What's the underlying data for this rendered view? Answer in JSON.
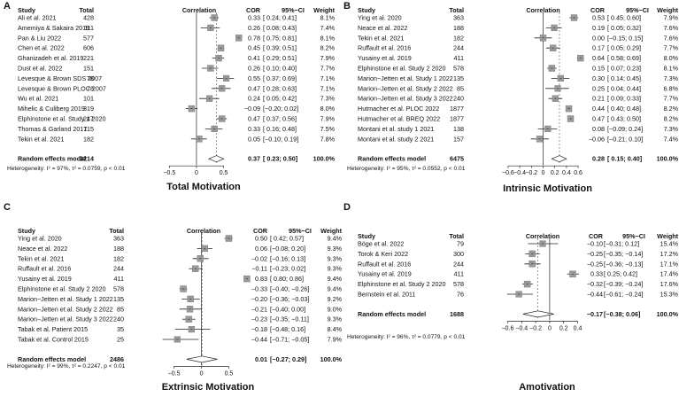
{
  "chart_data": [
    {
      "type": "forest",
      "panel_letter": "A",
      "title": "Total Motivation",
      "headers": {
        "study": "Study",
        "total": "Total",
        "corr": "Correlation",
        "cor": "COR",
        "ci": "95%−CI",
        "weight": "Weight"
      },
      "studies": [
        {
          "name": "Ali et al. 2021",
          "total": "428",
          "cor": 0.33,
          "lo": 0.24,
          "hi": 0.41,
          "cor_text": "0.33",
          "ci_text": "[ 0.24; 0.41]",
          "weight": "8.1%"
        },
        {
          "name": "Amemiya & Sakaira 2019",
          "total": "111",
          "cor": 0.26,
          "lo": 0.08,
          "hi": 0.43,
          "cor_text": "0.26",
          "ci_text": "[ 0.08; 0.43]",
          "weight": "7.4%"
        },
        {
          "name": "Pan & Liu 2022",
          "total": "577",
          "cor": 0.78,
          "lo": 0.75,
          "hi": 0.81,
          "cor_text": "0.78",
          "ci_text": "[ 0.75; 0.81]",
          "weight": "8.1%"
        },
        {
          "name": "Chen et al. 2022",
          "total": "606",
          "cor": 0.45,
          "lo": 0.39,
          "hi": 0.51,
          "cor_text": "0.45",
          "ci_text": "[ 0.39; 0.51]",
          "weight": "8.2%"
        },
        {
          "name": "Ghanizadeh et al. 2019",
          "total": "221",
          "cor": 0.41,
          "lo": 0.29,
          "hi": 0.51,
          "cor_text": "0.41",
          "ci_text": "[ 0.29; 0.51]",
          "weight": "7.9%"
        },
        {
          "name": "Dust et al. 2022",
          "total": "151",
          "cor": 0.26,
          "lo": 0.1,
          "hi": 0.4,
          "cor_text": "0.26",
          "ci_text": "[ 0.10; 0.40]",
          "weight": "7.7%"
        },
        {
          "name": "Levesque & Brown SDS 2007",
          "total": "78",
          "cor": 0.55,
          "lo": 0.37,
          "hi": 0.69,
          "cor_text": "0.55",
          "ci_text": "[ 0.37; 0.69]",
          "weight": "7.1%"
        },
        {
          "name": "Levesque & Brown PLOC 2007",
          "total": "78",
          "cor": 0.47,
          "lo": 0.28,
          "hi": 0.63,
          "cor_text": "0.47",
          "ci_text": "[ 0.28; 0.63]",
          "weight": "7.1%"
        },
        {
          "name": "Wu et al. 2021",
          "total": "101",
          "cor": 0.24,
          "lo": 0.05,
          "hi": 0.42,
          "cor_text": "0.24",
          "ci_text": "[ 0.05; 0.42]",
          "weight": "7.3%"
        },
        {
          "name": "Mihelic & Culiberg 2019",
          "total": "319",
          "cor": -0.09,
          "lo": -0.2,
          "hi": 0.02,
          "cor_text": "−0.09",
          "ci_text": "[−0.20; 0.02]",
          "weight": "8.0%"
        },
        {
          "name": "Elphinstone et al. Study 1 2020",
          "total": "247",
          "cor": 0.47,
          "lo": 0.37,
          "hi": 0.56,
          "cor_text": "0.47",
          "ci_text": "[ 0.37; 0.56]",
          "weight": "7.9%"
        },
        {
          "name": "Thomas & Garland 2017",
          "total": "115",
          "cor": 0.33,
          "lo": 0.16,
          "hi": 0.48,
          "cor_text": "0.33",
          "ci_text": "[ 0.16; 0.48]",
          "weight": "7.5%"
        },
        {
          "name": "Tekin et al. 2021",
          "total": "182",
          "cor": 0.05,
          "lo": -0.1,
          "hi": 0.19,
          "cor_text": "0.05",
          "ci_text": "[−0.10; 0.19]",
          "weight": "7.8%"
        }
      ],
      "pooled": {
        "name": "Random effects model",
        "total": "3214",
        "cor": 0.37,
        "lo": 0.23,
        "hi": 0.5,
        "cor_text": "0.37",
        "ci_text": "[ 0.23; 0.50]",
        "weight": "100.0%"
      },
      "heterogeneity": "Heterogeneity: I² = 97%, τ² = 0.0759, p < 0.01",
      "xlim": [
        -0.75,
        0.85
      ],
      "ticks": [
        {
          "v": -0.5,
          "t": "−0.5"
        },
        {
          "v": 0,
          "t": "0"
        },
        {
          "v": 0.5,
          "t": "0.5"
        }
      ]
    },
    {
      "type": "forest",
      "panel_letter": "B",
      "title": "Intrinsic Motivation",
      "headers": {
        "study": "Study",
        "total": "Total",
        "corr": "Correlation",
        "cor": "COR",
        "ci": "95%−CI",
        "weight": "Weight"
      },
      "studies": [
        {
          "name": "Ying et al. 2020",
          "total": "363",
          "cor": 0.53,
          "lo": 0.45,
          "hi": 0.6,
          "cor_text": "0.53",
          "ci_text": "[ 0.45; 0.60]",
          "weight": "7.9%"
        },
        {
          "name": "Neace et al. 2022",
          "total": "188",
          "cor": 0.19,
          "lo": 0.05,
          "hi": 0.32,
          "cor_text": "0.19",
          "ci_text": "[ 0.05; 0.32]",
          "weight": "7.6%"
        },
        {
          "name": "Tekin et al. 2021",
          "total": "182",
          "cor": 0.0,
          "lo": -0.15,
          "hi": 0.15,
          "cor_text": "0.00",
          "ci_text": "[−0.15; 0.15]",
          "weight": "7.6%"
        },
        {
          "name": "Ruffault et al. 2016",
          "total": "244",
          "cor": 0.17,
          "lo": 0.05,
          "hi": 0.29,
          "cor_text": "0.17",
          "ci_text": "[ 0.05; 0.29]",
          "weight": "7.7%"
        },
        {
          "name": "Yusainy et al. 2019",
          "total": "411",
          "cor": 0.64,
          "lo": 0.58,
          "hi": 0.69,
          "cor_text": "0.64",
          "ci_text": "[ 0.58; 0.69]",
          "weight": "8.0%"
        },
        {
          "name": "Elphinstone et al. Study 2 2020",
          "total": "578",
          "cor": 0.15,
          "lo": 0.07,
          "hi": 0.23,
          "cor_text": "0.15",
          "ci_text": "[ 0.07; 0.23]",
          "weight": "8.1%"
        },
        {
          "name": "Marion−Jetten et al. Study 1 2022",
          "total": "135",
          "cor": 0.3,
          "lo": 0.14,
          "hi": 0.45,
          "cor_text": "0.30",
          "ci_text": "[ 0.14; 0.45]",
          "weight": "7.3%"
        },
        {
          "name": "Marion−Jetten et al. Study 2 2022",
          "total": "85",
          "cor": 0.25,
          "lo": 0.04,
          "hi": 0.44,
          "cor_text": "0.25",
          "ci_text": "[ 0.04; 0.44]",
          "weight": "6.8%"
        },
        {
          "name": "Marion−Jetten et al. Study 3 2022",
          "total": "240",
          "cor": 0.21,
          "lo": 0.09,
          "hi": 0.33,
          "cor_text": "0.21",
          "ci_text": "[ 0.09; 0.33]",
          "weight": "7.7%"
        },
        {
          "name": "Hutmacher et al. PLOC 2022",
          "total": "1877",
          "cor": 0.44,
          "lo": 0.4,
          "hi": 0.48,
          "cor_text": "0.44",
          "ci_text": "[ 0.40; 0.48]",
          "weight": "8.2%"
        },
        {
          "name": "Hutmacher et al. BREQ 2022",
          "total": "1877",
          "cor": 0.47,
          "lo": 0.43,
          "hi": 0.5,
          "cor_text": "0.47",
          "ci_text": "[ 0.43; 0.50]",
          "weight": "8.2%"
        },
        {
          "name": "Montani et al. study 1 2021",
          "total": "138",
          "cor": 0.08,
          "lo": -0.09,
          "hi": 0.24,
          "cor_text": "0.08",
          "ci_text": "[−0.09; 0.24]",
          "weight": "7.3%"
        },
        {
          "name": "Montani et al. study 2 2021",
          "total": "157",
          "cor": -0.06,
          "lo": -0.21,
          "hi": 0.1,
          "cor_text": "−0.06",
          "ci_text": "[−0.21; 0.10]",
          "weight": "7.4%"
        }
      ],
      "pooled": {
        "name": "Random effects model",
        "total": "6475",
        "cor": 0.28,
        "lo": 0.15,
        "hi": 0.4,
        "cor_text": "0.28",
        "ci_text": "[ 0.15; 0.40]",
        "weight": "100.0%"
      },
      "heterogeneity": "Heterogeneity: I² = 95%, τ² = 0.0552, p < 0.01",
      "xlim": [
        -0.75,
        0.75
      ],
      "ticks": [
        {
          "v": -0.6,
          "t": "−0.6"
        },
        {
          "v": -0.4,
          "t": "−0.4"
        },
        {
          "v": -0.2,
          "t": "−0.2"
        },
        {
          "v": 0,
          "t": "0"
        },
        {
          "v": 0.2,
          "t": "0.2"
        },
        {
          "v": 0.4,
          "t": "0.4"
        },
        {
          "v": 0.6,
          "t": "0.6"
        }
      ]
    },
    {
      "type": "forest",
      "panel_letter": "C",
      "title": "Extrinsic Motivation",
      "headers": {
        "study": "Study",
        "total": "Total",
        "corr": "Correlation",
        "cor": "COR",
        "ci": "95%−CI",
        "weight": "Weight"
      },
      "studies": [
        {
          "name": "Ying et al. 2020",
          "total": "363",
          "cor": 0.5,
          "lo": 0.42,
          "hi": 0.57,
          "cor_text": "0.50",
          "ci_text": "[ 0.42; 0.57]",
          "weight": "9.4%"
        },
        {
          "name": "Neace et al. 2022",
          "total": "188",
          "cor": 0.06,
          "lo": -0.08,
          "hi": 0.2,
          "cor_text": "0.06",
          "ci_text": "[−0.08; 0.20]",
          "weight": "9.3%"
        },
        {
          "name": "Tekin et al. 2021",
          "total": "182",
          "cor": -0.02,
          "lo": -0.16,
          "hi": 0.13,
          "cor_text": "−0.02",
          "ci_text": "[−0.16; 0.13]",
          "weight": "9.3%"
        },
        {
          "name": "Ruffault et al. 2016",
          "total": "244",
          "cor": -0.11,
          "lo": -0.23,
          "hi": 0.02,
          "cor_text": "−0.11",
          "ci_text": "[−0.23; 0.02]",
          "weight": "9.3%"
        },
        {
          "name": "Yusainy et al. 2019",
          "total": "411",
          "cor": 0.83,
          "lo": 0.8,
          "hi": 0.86,
          "cor_text": "0.83",
          "ci_text": "[ 0.80; 0.86]",
          "weight": "9.4%"
        },
        {
          "name": "Elphinstone et al. Study 2 2020",
          "total": "578",
          "cor": -0.33,
          "lo": -0.4,
          "hi": -0.26,
          "cor_text": "−0.33",
          "ci_text": "[−0.40; −0.26]",
          "weight": "9.4%"
        },
        {
          "name": "Marion−Jetten et al. Study 1 2022",
          "total": "135",
          "cor": -0.2,
          "lo": -0.36,
          "hi": -0.03,
          "cor_text": "−0.20",
          "ci_text": "[−0.36; −0.03]",
          "weight": "9.2%"
        },
        {
          "name": "Marion−Jetten et al. Study 2 2022",
          "total": "85",
          "cor": -0.21,
          "lo": -0.4,
          "hi": 0.0,
          "cor_text": "−0.21",
          "ci_text": "[−0.40; 0.00]",
          "weight": "9.0%"
        },
        {
          "name": "Marion−Jetten et al. Study 3 2022",
          "total": "240",
          "cor": -0.23,
          "lo": -0.35,
          "hi": -0.11,
          "cor_text": "−0.23",
          "ci_text": "[−0.35; −0.11]",
          "weight": "9.3%"
        },
        {
          "name": "Tabak et al. Patient 2015",
          "total": "35",
          "cor": -0.18,
          "lo": -0.48,
          "hi": 0.16,
          "cor_text": "−0.18",
          "ci_text": "[−0.48; 0.16]",
          "weight": "8.4%"
        },
        {
          "name": "Tabak et al. Control 2015",
          "total": "25",
          "cor": -0.44,
          "lo": -0.71,
          "hi": -0.05,
          "cor_text": "−0.44",
          "ci_text": "[−0.71; −0.05]",
          "weight": "7.9%"
        }
      ],
      "pooled": {
        "name": "Random effects model",
        "total": "2486",
        "cor": 0.01,
        "lo": -0.27,
        "hi": 0.29,
        "cor_text": "0.01",
        "ci_text": "[−0.27; 0.29]",
        "weight": "100.0%"
      },
      "heterogeneity": "Heterogeneity: I² = 99%, τ² = 0.2247, p < 0.01",
      "xlim": [
        -0.8,
        0.88
      ],
      "ticks": [
        {
          "v": -0.5,
          "t": "−0.5"
        },
        {
          "v": 0,
          "t": "0"
        },
        {
          "v": 0.5,
          "t": "0.5"
        }
      ]
    },
    {
      "type": "forest",
      "panel_letter": "D",
      "title": "Amotivation",
      "headers": {
        "study": "Study",
        "total": "Total",
        "corr": "Correlation",
        "cor": "COR",
        "ci": "95%−CI",
        "weight": "Weight"
      },
      "studies": [
        {
          "name": "Böge et al. 2022",
          "total": "79",
          "cor": -0.1,
          "lo": -0.31,
          "hi": 0.12,
          "cor_text": "−0.10",
          "ci_text": "[−0.31; 0.12]",
          "weight": "15.4%"
        },
        {
          "name": "Torok & Keri 2022",
          "total": "300",
          "cor": -0.25,
          "lo": -0.35,
          "hi": -0.14,
          "cor_text": "−0.25",
          "ci_text": "[−0.35; −0.14]",
          "weight": "17.2%"
        },
        {
          "name": "Ruffault et al. 2016",
          "total": "244",
          "cor": -0.25,
          "lo": -0.36,
          "hi": -0.13,
          "cor_text": "−0.25",
          "ci_text": "[−0.36; −0.13]",
          "weight": "17.1%"
        },
        {
          "name": "Yusainy et al. 2019",
          "total": "411",
          "cor": 0.33,
          "lo": 0.25,
          "hi": 0.42,
          "cor_text": "0.33",
          "ci_text": "[ 0.25; 0.42]",
          "weight": "17.4%"
        },
        {
          "name": "Elphinstone et al. Study 2 2020",
          "total": "578",
          "cor": -0.32,
          "lo": -0.39,
          "hi": -0.24,
          "cor_text": "−0.32",
          "ci_text": "[−0.39; −0.24]",
          "weight": "17.6%"
        },
        {
          "name": "Bernstein et al. 2011",
          "total": "76",
          "cor": -0.44,
          "lo": -0.61,
          "hi": -0.24,
          "cor_text": "−0.44",
          "ci_text": "[−0.61; −0.24]",
          "weight": "15.3%"
        }
      ],
      "pooled": {
        "name": "Random effects model",
        "total": "1688",
        "cor": -0.17,
        "lo": -0.38,
        "hi": 0.06,
        "cor_text": "−0.17",
        "ci_text": "[−0.38; 0.06]",
        "weight": "100.0%"
      },
      "heterogeneity": "Heterogeneity: I² = 96%, τ² = 0.0779, p < 0.01",
      "xlim": [
        -0.72,
        0.52
      ],
      "ticks": [
        {
          "v": -0.6,
          "t": "−0.6"
        },
        {
          "v": -0.4,
          "t": "−0.4"
        },
        {
          "v": -0.2,
          "t": "−0.2"
        },
        {
          "v": 0,
          "t": "0"
        },
        {
          "v": 0.2,
          "t": "0.2"
        },
        {
          "v": 0.4,
          "t": "0.4"
        }
      ]
    }
  ]
}
